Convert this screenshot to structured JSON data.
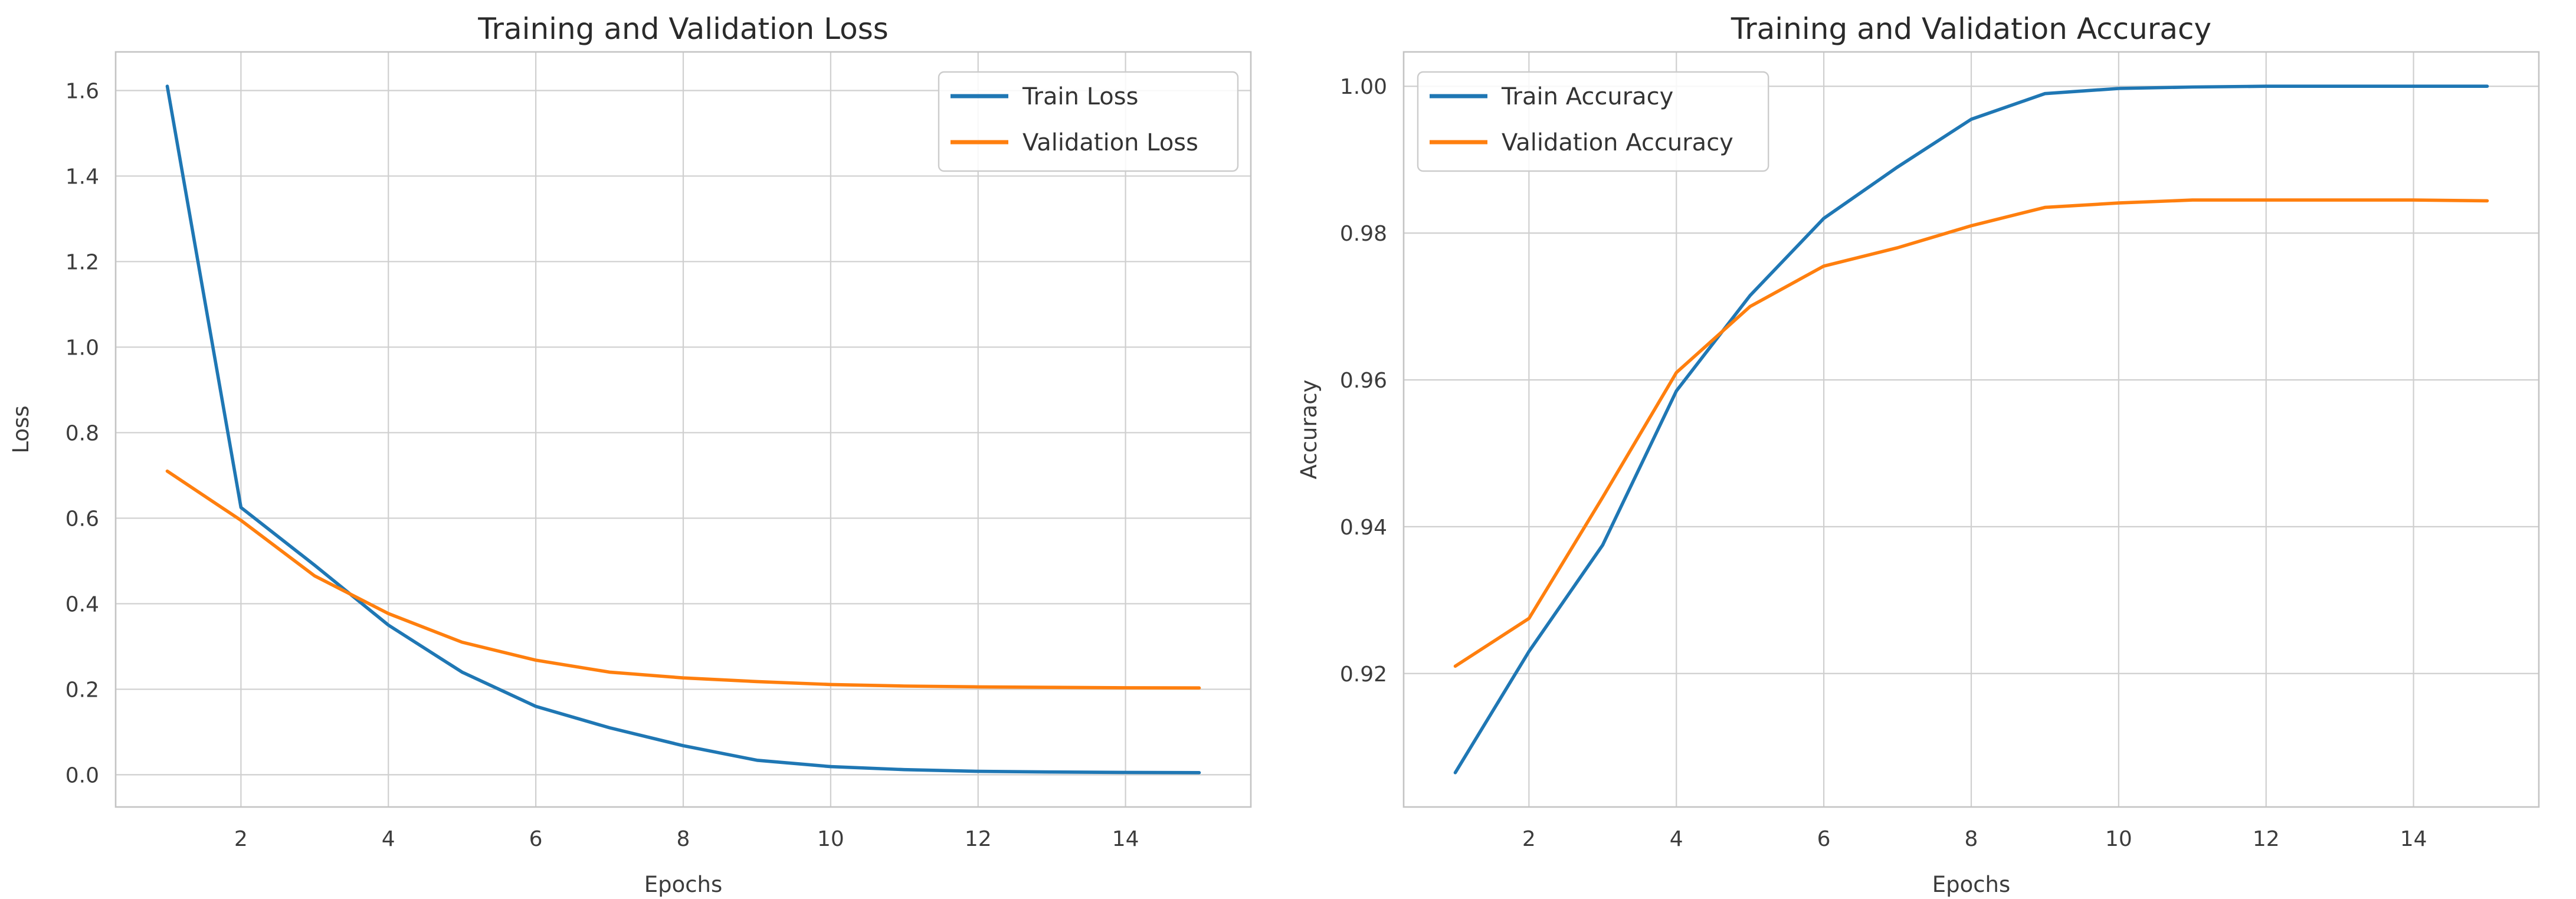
{
  "style": {
    "background": "#ffffff",
    "grid_color": "#cfcfcf",
    "spine_color": "#c4c4c4",
    "tick_color": "#3c3c3c",
    "title_color": "#2a2a2a",
    "legend_border": "#cccccc",
    "blue": "#1f77b4",
    "orange": "#ff7f0e"
  },
  "chart_data": [
    {
      "type": "line",
      "title": "Training and Validation Loss",
      "xlabel": "Epochs",
      "ylabel": "Loss",
      "x": [
        1,
        2,
        3,
        4,
        5,
        6,
        7,
        8,
        9,
        10,
        11,
        12,
        13,
        14,
        15
      ],
      "series": [
        {
          "name": "Train Loss",
          "color": "#1f77b4",
          "values": [
            1.61,
            0.625,
            0.49,
            0.35,
            0.24,
            0.16,
            0.11,
            0.068,
            0.034,
            0.019,
            0.012,
            0.008,
            0.0065,
            0.0055,
            0.005
          ]
        },
        {
          "name": "Validation Loss",
          "color": "#ff7f0e",
          "values": [
            0.71,
            0.595,
            0.465,
            0.377,
            0.31,
            0.268,
            0.24,
            0.2265,
            0.218,
            0.211,
            0.2075,
            0.2055,
            0.2045,
            0.2035,
            0.203
          ]
        }
      ],
      "xlim": [
        0.3,
        15.7
      ],
      "ylim": [
        -0.0753,
        1.6903
      ],
      "xticks": [
        2,
        4,
        6,
        8,
        10,
        12,
        14
      ],
      "xtick_labels": [
        "2",
        "4",
        "6",
        "8",
        "10",
        "12",
        "14"
      ],
      "yticks": [
        0.0,
        0.2,
        0.4,
        0.6,
        0.8,
        1.0,
        1.2,
        1.4,
        1.6
      ],
      "ytick_labels": [
        "0.0",
        "0.2",
        "0.4",
        "0.6",
        "0.8",
        "1.0",
        "1.2",
        "1.4",
        "1.6"
      ],
      "grid": true,
      "legend": {
        "position": "upper-right",
        "entries": [
          "Train Loss",
          "Validation Loss"
        ]
      }
    },
    {
      "type": "line",
      "title": "Training and Validation Accuracy",
      "xlabel": "Epochs",
      "ylabel": "Accuracy",
      "x": [
        1,
        2,
        3,
        4,
        5,
        6,
        7,
        8,
        9,
        10,
        11,
        12,
        13,
        14,
        15
      ],
      "series": [
        {
          "name": "Train Accuracy",
          "color": "#1f77b4",
          "values": [
            0.9065,
            0.923,
            0.9375,
            0.9585,
            0.9715,
            0.982,
            0.989,
            0.9955,
            0.999,
            0.9997,
            0.9999,
            1.0,
            1.0,
            1.0,
            1.0
          ]
        },
        {
          "name": "Validation Accuracy",
          "color": "#ff7f0e",
          "values": [
            0.921,
            0.9275,
            0.944,
            0.961,
            0.97,
            0.9755,
            0.978,
            0.981,
            0.9835,
            0.9841,
            0.9845,
            0.9845,
            0.9845,
            0.9845,
            0.9844
          ]
        }
      ],
      "xlim": [
        0.3,
        15.7
      ],
      "ylim": [
        0.90182,
        1.00468
      ],
      "xticks": [
        2,
        4,
        6,
        8,
        10,
        12,
        14
      ],
      "xtick_labels": [
        "2",
        "4",
        "6",
        "8",
        "10",
        "12",
        "14"
      ],
      "yticks": [
        0.92,
        0.94,
        0.96,
        0.98,
        1.0
      ],
      "ytick_labels": [
        "0.92",
        "0.94",
        "0.96",
        "0.98",
        "1.00"
      ],
      "grid": true,
      "legend": {
        "position": "upper-left",
        "entries": [
          "Train Accuracy",
          "Validation Accuracy"
        ]
      }
    }
  ]
}
